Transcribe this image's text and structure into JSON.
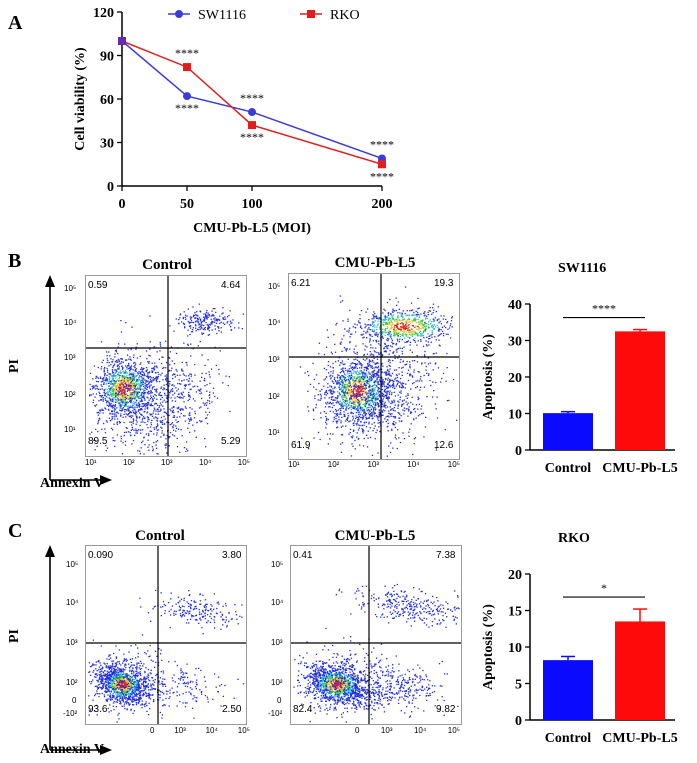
{
  "colors": {
    "sw1116": "#3b3bd8",
    "rko": "#e11d1d",
    "bar_control": "#0a0aff",
    "bar_treated": "#ff0a0a"
  },
  "panel_a": {
    "letter": "A",
    "legend": [
      "SW1116",
      "RKO"
    ],
    "sig_labels": [
      "****",
      "****",
      "****",
      "****",
      "****",
      "****"
    ]
  },
  "panel_b": {
    "letter": "B",
    "flow_titles": [
      "Control",
      "CMU-Pb-L5"
    ],
    "y_axis_label": "PI",
    "x_axis_label": "Annexin V",
    "quadrant_values": [
      {
        "ul": "0.59",
        "ur": "4.64",
        "ll": "89.5",
        "lr": "5.29"
      },
      {
        "ul": "6.21",
        "ur": "19.3",
        "ll": "61.9",
        "lr": "12.6"
      }
    ],
    "flow_y_ticks": [
      "10⁵",
      "10⁴",
      "10³",
      "10²",
      "10¹"
    ],
    "flow_x_ticks": [
      "10¹",
      "10²",
      "10³",
      "10⁴",
      "10⁵"
    ]
  },
  "panel_c": {
    "letter": "C",
    "flow_titles": [
      "Control",
      "CMU-Pb-L5"
    ],
    "y_axis_label": "PI",
    "x_axis_label": "Annexin V",
    "quadrant_values": [
      {
        "ul": "0.090",
        "ur": "3.80",
        "ll": "93.6",
        "lr": "2.50"
      },
      {
        "ul": "0.41",
        "ur": "7.38",
        "ll": "82.4",
        "lr": "9.82"
      }
    ],
    "flow_y_ticks": [
      "10⁵",
      "10⁴",
      "10³",
      "10²",
      "0",
      "-10²"
    ],
    "flow_x_ticks": [
      "0",
      "10³",
      "10⁴",
      "10⁵"
    ]
  },
  "chart_data": [
    {
      "type": "line",
      "title": "",
      "xlabel": "CMU-Pb-L5 (MOI)",
      "ylabel": "Cell viability (%)",
      "x": [
        0,
        50,
        100,
        200
      ],
      "xticks": [
        "0",
        "50",
        "100",
        "200"
      ],
      "ylim": [
        0,
        120
      ],
      "yticks": [
        0,
        30,
        60,
        90,
        120
      ],
      "series": [
        {
          "name": "SW1116",
          "values": [
            100,
            62,
            51,
            19
          ]
        },
        {
          "name": "RKO",
          "values": [
            100,
            82,
            42,
            15
          ]
        }
      ],
      "annotations": [
        "****",
        "****",
        "****",
        "****",
        "****",
        "****"
      ]
    },
    {
      "type": "bar",
      "title": "SW1116",
      "categories": [
        "Control",
        "CMU-Pb-L5"
      ],
      "values": [
        10.1,
        32.5
      ],
      "errors": [
        0.4,
        0.5
      ],
      "ylabel": "Apoptosis (%)",
      "ylim": [
        0,
        40
      ],
      "yticks": [
        0,
        10,
        20,
        30,
        40
      ],
      "significance": "****"
    },
    {
      "type": "bar",
      "title": "RKO",
      "categories": [
        "Control",
        "CMU-Pb-L5"
      ],
      "values": [
        8.2,
        13.5
      ],
      "errors": [
        0.5,
        1.7
      ],
      "ylabel": "Apoptosis (%)",
      "ylim": [
        0,
        20
      ],
      "yticks": [
        0,
        5,
        10,
        15,
        20
      ],
      "significance": "*"
    }
  ]
}
